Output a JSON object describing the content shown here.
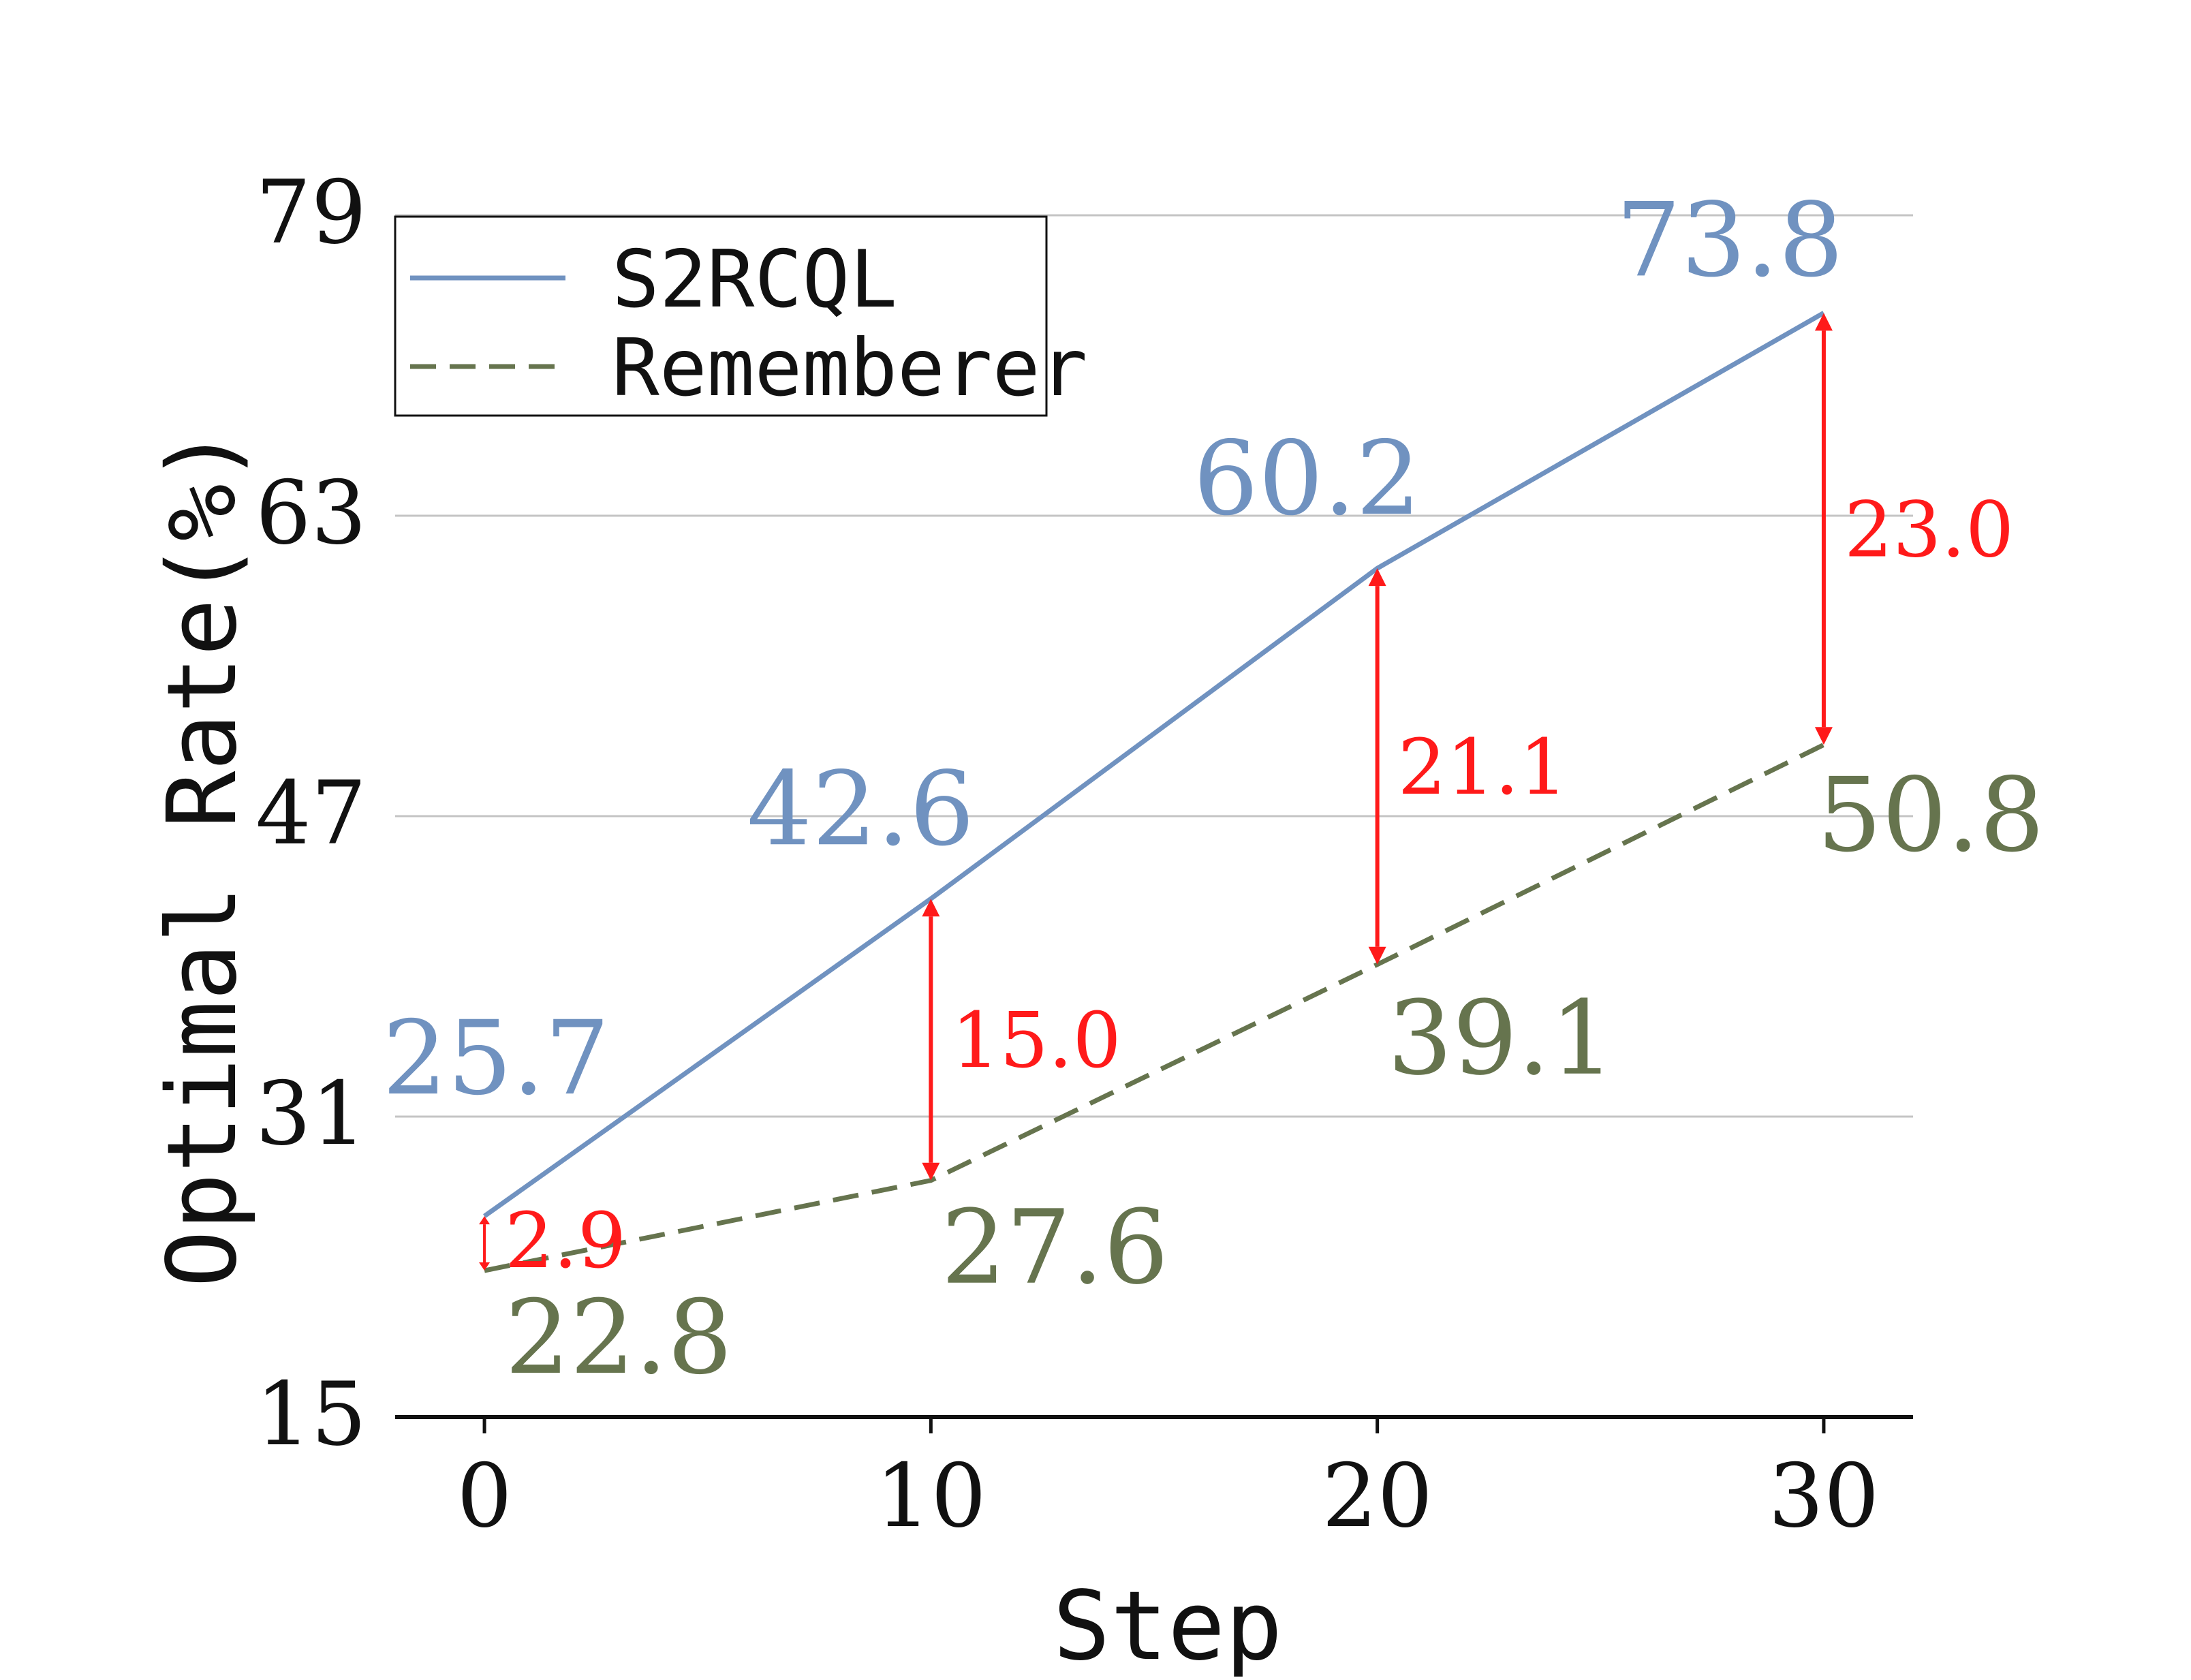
{
  "chart_data": {
    "type": "line",
    "title": "",
    "xlabel": "Step",
    "ylabel": "Optimal Rate(%)",
    "x": [
      0,
      10,
      20,
      30
    ],
    "xticks": [
      "0",
      "10",
      "20",
      "30"
    ],
    "yticks": [
      "15",
      "31",
      "47",
      "63",
      "79"
    ],
    "xlim": [
      -2,
      32
    ],
    "ylim": [
      15,
      79
    ],
    "grid": "horizontal",
    "legend_position": "top-left",
    "series": [
      {
        "name": "S2RCQL",
        "values": [
          25.7,
          42.6,
          60.2,
          73.8
        ],
        "labels": [
          "25.7",
          "42.6",
          "60.2",
          "73.8"
        ],
        "color": "#7092c0",
        "style": "solid"
      },
      {
        "name": "Rememberer",
        "values": [
          22.8,
          27.6,
          39.1,
          50.8
        ],
        "labels": [
          "22.8",
          "27.6",
          "39.1",
          "50.8"
        ],
        "color": "#66744e",
        "style": "dashed"
      }
    ],
    "annotations": [
      {
        "x": 0,
        "from": 22.8,
        "to": 25.7,
        "label": "2.9"
      },
      {
        "x": 10,
        "from": 27.6,
        "to": 42.6,
        "label": "15.0"
      },
      {
        "x": 20,
        "from": 39.1,
        "to": 60.2,
        "label": "21.1"
      },
      {
        "x": 30,
        "from": 50.8,
        "to": 73.8,
        "label": "23.0"
      }
    ],
    "annotation_color": "#ff1a1a"
  }
}
